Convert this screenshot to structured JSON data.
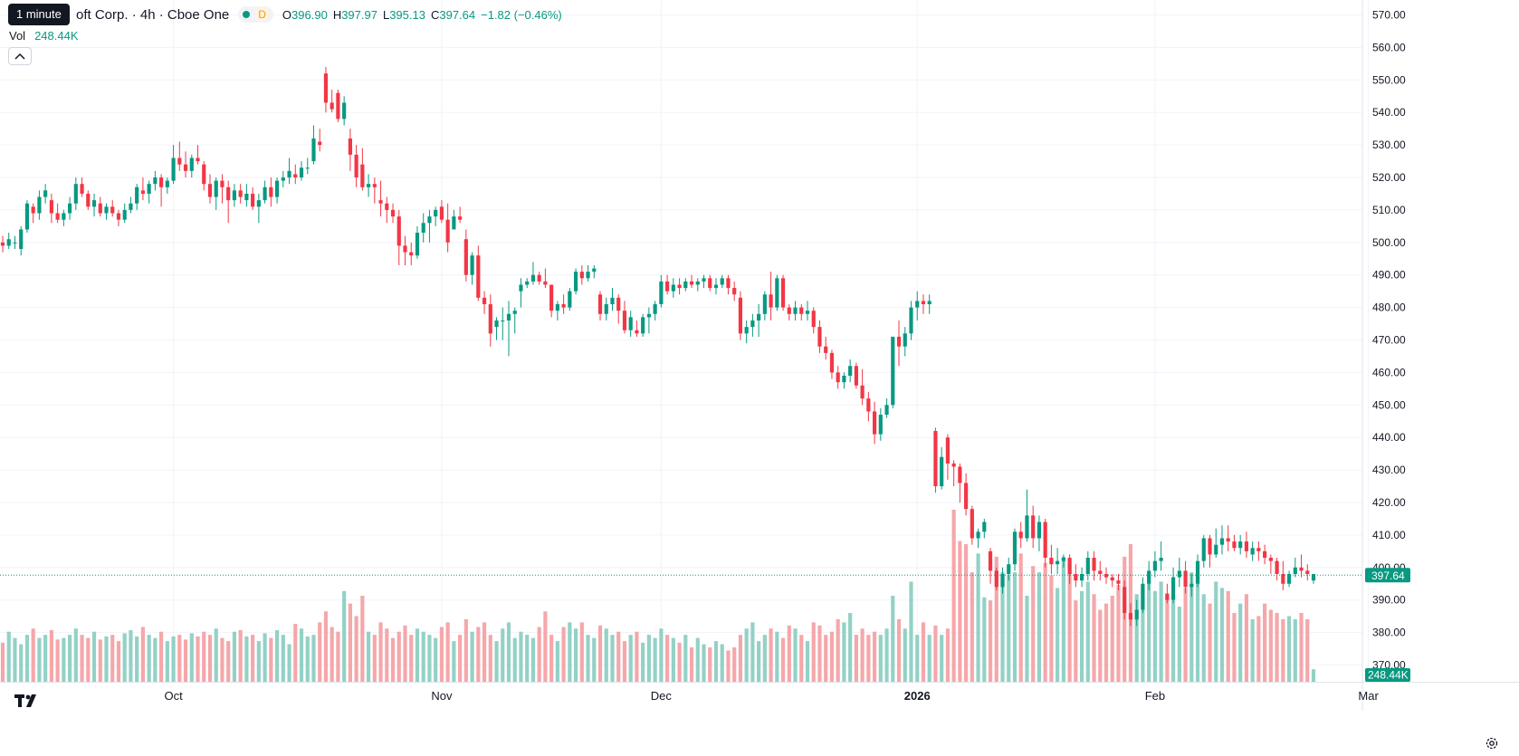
{
  "header": {
    "tooltip": "1 minute",
    "symbol": "oft Corp. · 4h · Cboe One",
    "d_badge": "D",
    "o_label": "O",
    "o_value": "396.90",
    "h_label": "H",
    "h_value": "397.97",
    "l_label": "L",
    "l_value": "395.13",
    "c_label": "C",
    "c_value": "397.64",
    "change": "−1.82 (−0.46%)",
    "vol_label": "Vol",
    "vol_value": "248.44K"
  },
  "colors": {
    "up": "#089981",
    "down": "#f23645",
    "up_vol": "#93d1c6",
    "down_vol": "#f5a7aa",
    "grid": "#f0f3fa"
  },
  "chart_data": {
    "type": "candlestick",
    "interval": "4h",
    "y_axis": {
      "min": 365,
      "max": 575,
      "ticks": [
        570,
        560,
        550,
        540,
        530,
        520,
        510,
        500,
        490,
        480,
        470,
        460,
        450,
        440,
        430,
        420,
        410,
        400,
        390,
        380,
        370
      ],
      "tick_labels": [
        "570.00",
        "560.00",
        "550.00",
        "540.00",
        "530.00",
        "520.00",
        "510.00",
        "500.00",
        "490.00",
        "480.00",
        "470.00",
        "460.00",
        "450.00",
        "440.00",
        "430.00",
        "420.00",
        "410.00",
        "400.00",
        "390.00",
        "380.00",
        "370.00"
      ]
    },
    "x_axis": {
      "labels": [
        {
          "text": "Oct",
          "bar": 28
        },
        {
          "text": "Nov",
          "bar": 72
        },
        {
          "text": "Dec",
          "bar": 108
        },
        {
          "text": "2026",
          "bar": 150,
          "bold": true
        },
        {
          "text": "Feb",
          "bar": 189
        },
        {
          "text": "Mar",
          "bar": 224
        }
      ]
    },
    "last_price": 397.64,
    "last_price_label": "397.64",
    "last_volume_label": "248.44K",
    "ohlc_sequence": [
      [
        500,
        502,
        497,
        499
      ],
      [
        499,
        503,
        498,
        501
      ],
      [
        500,
        502,
        498,
        500
      ],
      [
        498,
        505,
        496,
        504
      ],
      [
        504,
        513,
        503,
        512
      ],
      [
        511,
        512,
        506,
        509
      ],
      [
        509,
        516,
        507,
        514
      ],
      [
        514,
        518,
        512,
        516
      ],
      [
        513,
        515,
        506,
        509
      ],
      [
        509,
        512,
        506,
        507
      ],
      [
        507,
        510,
        505,
        509
      ],
      [
        509,
        514,
        507,
        512
      ],
      [
        512,
        520,
        510,
        518
      ],
      [
        518,
        520,
        514,
        515
      ],
      [
        515,
        516,
        510,
        511
      ],
      [
        511,
        515,
        508,
        513
      ],
      [
        512,
        514,
        508,
        509
      ],
      [
        509,
        512,
        507,
        511
      ],
      [
        511,
        513,
        508,
        509
      ],
      [
        509,
        510,
        505,
        507
      ],
      [
        507,
        512,
        506,
        510
      ],
      [
        510,
        514,
        509,
        512
      ],
      [
        512,
        518,
        510,
        517
      ],
      [
        516,
        520,
        513,
        515
      ],
      [
        515,
        519,
        512,
        518
      ],
      [
        518,
        522,
        516,
        520
      ],
      [
        520,
        521,
        511,
        517
      ],
      [
        517,
        520,
        515,
        519
      ],
      [
        519,
        530,
        518,
        526
      ],
      [
        526,
        531,
        522,
        524
      ],
      [
        524,
        528,
        520,
        522
      ],
      [
        522,
        527,
        520,
        526
      ],
      [
        526,
        530,
        524,
        525
      ],
      [
        524,
        525,
        516,
        518
      ],
      [
        518,
        521,
        512,
        514
      ],
      [
        514,
        520,
        510,
        519
      ],
      [
        519,
        521,
        512,
        517
      ],
      [
        517,
        519,
        506,
        513
      ],
      [
        513,
        518,
        511,
        516
      ],
      [
        516,
        518,
        512,
        514
      ],
      [
        513,
        518,
        511,
        515
      ],
      [
        515,
        517,
        510,
        511
      ],
      [
        511,
        515,
        506,
        513
      ],
      [
        513,
        519,
        512,
        517
      ],
      [
        517,
        520,
        511,
        514
      ],
      [
        514,
        520,
        512,
        519
      ],
      [
        519,
        522,
        517,
        520
      ],
      [
        520,
        526,
        518,
        522
      ],
      [
        521,
        524,
        518,
        520
      ],
      [
        520,
        525,
        519,
        523
      ],
      [
        523,
        526,
        521,
        523
      ],
      [
        525,
        536,
        524,
        532
      ],
      [
        531,
        535,
        528,
        530
      ],
      [
        552,
        554,
        540,
        543
      ],
      [
        543,
        547,
        540,
        541
      ],
      [
        546,
        547,
        537,
        538
      ],
      [
        538,
        545,
        536,
        543
      ],
      [
        532,
        535,
        522,
        527
      ],
      [
        527,
        530,
        517,
        520
      ],
      [
        524,
        529,
        516,
        517
      ],
      [
        517,
        521,
        514,
        518
      ],
      [
        518,
        520,
        512,
        517
      ],
      [
        513,
        519,
        508,
        512
      ],
      [
        512,
        514,
        506,
        510
      ],
      [
        510,
        512,
        506,
        508
      ],
      [
        508,
        510,
        493,
        499
      ],
      [
        499,
        502,
        493,
        497
      ],
      [
        497,
        500,
        493,
        496
      ],
      [
        496,
        505,
        495,
        503
      ],
      [
        503,
        509,
        500,
        506
      ],
      [
        506,
        510,
        500,
        508
      ],
      [
        508,
        511,
        505,
        510
      ],
      [
        511,
        513,
        506,
        507
      ],
      [
        507,
        512,
        497,
        500
      ],
      [
        504,
        510,
        505,
        508
      ],
      [
        508,
        511,
        506,
        507
      ],
      [
        501,
        504,
        488,
        490
      ],
      [
        490,
        497,
        487,
        496
      ],
      [
        496,
        499,
        482,
        483
      ],
      [
        483,
        485,
        478,
        481
      ],
      [
        481,
        484,
        468,
        472
      ],
      [
        474,
        477,
        470,
        476
      ],
      [
        476,
        480,
        470,
        476
      ],
      [
        476,
        482,
        465,
        478
      ],
      [
        478,
        480,
        472,
        479
      ],
      [
        485,
        489,
        480,
        487
      ],
      [
        487,
        489,
        486,
        488
      ],
      [
        488,
        494,
        487,
        490
      ],
      [
        490,
        491,
        487,
        488
      ],
      [
        488,
        492,
        486,
        487
      ],
      [
        487,
        486,
        477,
        479
      ],
      [
        479,
        482,
        476,
        481
      ],
      [
        481,
        484,
        478,
        480
      ],
      [
        480,
        486,
        479,
        485
      ],
      [
        485,
        492,
        484,
        491
      ],
      [
        491,
        493,
        487,
        489
      ],
      [
        489,
        493,
        488,
        491
      ],
      [
        491,
        493,
        489,
        492
      ],
      [
        484,
        485,
        476,
        478
      ],
      [
        478,
        483,
        476,
        481
      ],
      [
        481,
        486,
        479,
        483
      ],
      [
        483,
        484,
        475,
        479
      ],
      [
        479,
        482,
        472,
        473
      ],
      [
        473,
        479,
        471,
        477
      ],
      [
        473,
        476,
        471,
        472
      ],
      [
        472,
        478,
        471,
        477
      ],
      [
        477,
        480,
        472,
        478
      ],
      [
        478,
        482,
        476,
        481
      ],
      [
        481,
        490,
        480,
        488
      ],
      [
        488,
        490,
        484,
        485
      ],
      [
        485,
        489,
        483,
        487
      ],
      [
        487,
        489,
        484,
        486
      ],
      [
        486,
        489,
        485,
        488
      ],
      [
        488,
        490,
        486,
        487
      ],
      [
        487,
        489,
        485,
        488
      ],
      [
        488,
        490,
        486,
        489
      ],
      [
        489,
        490,
        485,
        486
      ],
      [
        486,
        489,
        484,
        487
      ],
      [
        487,
        490,
        486,
        489
      ],
      [
        489,
        490,
        484,
        486
      ],
      [
        486,
        488,
        482,
        484
      ],
      [
        483,
        485,
        470,
        472
      ],
      [
        472,
        476,
        469,
        474
      ],
      [
        474,
        478,
        471,
        476
      ],
      [
        476,
        481,
        471,
        478
      ],
      [
        478,
        485,
        476,
        484
      ],
      [
        484,
        491,
        476,
        480
      ],
      [
        480,
        490,
        479,
        489
      ],
      [
        489,
        490,
        479,
        480
      ],
      [
        480,
        481,
        476,
        478
      ],
      [
        478,
        482,
        476,
        480
      ],
      [
        480,
        481,
        476,
        478
      ],
      [
        478,
        482,
        476,
        479
      ],
      [
        479,
        480,
        472,
        474
      ],
      [
        474,
        476,
        466,
        468
      ],
      [
        468,
        471,
        464,
        466
      ],
      [
        466,
        467,
        458,
        460
      ],
      [
        460,
        462,
        455,
        457
      ],
      [
        457,
        460,
        455,
        459
      ],
      [
        459,
        464,
        457,
        462
      ],
      [
        462,
        463,
        455,
        456
      ],
      [
        456,
        461,
        450,
        452
      ],
      [
        452,
        454,
        445,
        448
      ],
      [
        448,
        451,
        438,
        441
      ],
      [
        441,
        449,
        439,
        447
      ],
      [
        447,
        452,
        446,
        450
      ],
      [
        450,
        471,
        449,
        471
      ],
      [
        471,
        476,
        462,
        468
      ],
      [
        468,
        474,
        465,
        472
      ],
      [
        472,
        482,
        470,
        480
      ],
      [
        480,
        485,
        476,
        482
      ],
      [
        482,
        484,
        478,
        481
      ],
      [
        481,
        484,
        478,
        482
      ],
      [
        442,
        443,
        423,
        425
      ],
      [
        425,
        437,
        424,
        434
      ],
      [
        440,
        441,
        427,
        432
      ],
      [
        432,
        433,
        425,
        431
      ],
      [
        431,
        432,
        420,
        426
      ],
      [
        426,
        429,
        416,
        418
      ],
      [
        418,
        419,
        407,
        409
      ],
      [
        409,
        412,
        406,
        411
      ],
      [
        411,
        415,
        409,
        414
      ],
      [
        405,
        406,
        395,
        399
      ],
      [
        399,
        400,
        393,
        394
      ],
      [
        394,
        400,
        392,
        398
      ],
      [
        398,
        403,
        396,
        401
      ],
      [
        401,
        412,
        399,
        411
      ],
      [
        411,
        414,
        406,
        409
      ],
      [
        409,
        424,
        408,
        416
      ],
      [
        416,
        419,
        406,
        409
      ],
      [
        409,
        416,
        405,
        414
      ],
      [
        414,
        415,
        400,
        403
      ],
      [
        403,
        407,
        398,
        401
      ],
      [
        401,
        406,
        398,
        402
      ],
      [
        402,
        404,
        400,
        403
      ],
      [
        403,
        404,
        395,
        398
      ],
      [
        398,
        401,
        394,
        396
      ],
      [
        396,
        400,
        394,
        398
      ],
      [
        398,
        405,
        396,
        403
      ],
      [
        403,
        405,
        396,
        399
      ],
      [
        399,
        402,
        396,
        398
      ],
      [
        398,
        400,
        395,
        397
      ],
      [
        397,
        398,
        394,
        396
      ],
      [
        396,
        398,
        393,
        395
      ],
      [
        394,
        396,
        384,
        386
      ],
      [
        386,
        389,
        382,
        384
      ],
      [
        384,
        390,
        382,
        387
      ],
      [
        387,
        397,
        386,
        395
      ],
      [
        395,
        402,
        393,
        399
      ],
      [
        399,
        405,
        397,
        402
      ],
      [
        402,
        408,
        399,
        403
      ],
      [
        392,
        395,
        389,
        390
      ],
      [
        390,
        400,
        389,
        397
      ],
      [
        397,
        403,
        394,
        399
      ],
      [
        399,
        402,
        392,
        394
      ],
      [
        394,
        398,
        391,
        395
      ],
      [
        395,
        404,
        394,
        402
      ],
      [
        402,
        410,
        400,
        409
      ],
      [
        409,
        410,
        400,
        404
      ],
      [
        404,
        412,
        403,
        407
      ],
      [
        407,
        413,
        404,
        409
      ],
      [
        409,
        413,
        405,
        408
      ],
      [
        408,
        410,
        405,
        406
      ],
      [
        406,
        410,
        404,
        408
      ],
      [
        408,
        411,
        403,
        405
      ],
      [
        404,
        408,
        402,
        406
      ],
      [
        406,
        408,
        402,
        405
      ],
      [
        405,
        407,
        401,
        403
      ],
      [
        403,
        404,
        398,
        402
      ],
      [
        402,
        403,
        396,
        398
      ],
      [
        398,
        402,
        393,
        395
      ],
      [
        395,
        399,
        394,
        398
      ],
      [
        398,
        403,
        397,
        400
      ],
      [
        400,
        404,
        397,
        399
      ],
      [
        399,
        401,
        396,
        398
      ],
      [
        396,
        398,
        395,
        398
      ]
    ],
    "volume_sequence": [
      25,
      32,
      28,
      24,
      30,
      34,
      28,
      30,
      33,
      27,
      28,
      30,
      34,
      30,
      28,
      32,
      27,
      29,
      30,
      26,
      31,
      33,
      29,
      35,
      30,
      28,
      32,
      26,
      29,
      30,
      27,
      31,
      29,
      32,
      30,
      34,
      28,
      26,
      32,
      33,
      29,
      30,
      26,
      31,
      28,
      33,
      30,
      24,
      37,
      34,
      29,
      30,
      38,
      45,
      35,
      32,
      58,
      50,
      42,
      55,
      32,
      30,
      38,
      34,
      28,
      32,
      36,
      30,
      34,
      32,
      30,
      28,
      35,
      38,
      26,
      30,
      40,
      32,
      35,
      38,
      30,
      26,
      34,
      38,
      28,
      32,
      30,
      28,
      35,
      45,
      30,
      26,
      35,
      38,
      34,
      38,
      30,
      28,
      36,
      34,
      30,
      32,
      26,
      30,
      32,
      25,
      30,
      28,
      34,
      30,
      28,
      25,
      30,
      22,
      28,
      24,
      22,
      26,
      24,
      20,
      22,
      30,
      34,
      38,
      26,
      30,
      34,
      32,
      28,
      36,
      34,
      30,
      26,
      38,
      36,
      30,
      32,
      40,
      38,
      44,
      30,
      34,
      30,
      32,
      30,
      34,
      55,
      40,
      34,
      64,
      30,
      38,
      30,
      36,
      30,
      34,
      110,
      90,
      88,
      70,
      82,
      54,
      52,
      80,
      70,
      68,
      70,
      82,
      55,
      74,
      70,
      76,
      68,
      60,
      80,
      76,
      52,
      58,
      64,
      56,
      46,
      50,
      55,
      62,
      80,
      88,
      56,
      60,
      70,
      58,
      64,
      54,
      52,
      48,
      60,
      70,
      68,
      56,
      50,
      64,
      60,
      58,
      44,
      50,
      56,
      40,
      42,
      50,
      46,
      44,
      40,
      42,
      40,
      44,
      40,
      8
    ]
  }
}
